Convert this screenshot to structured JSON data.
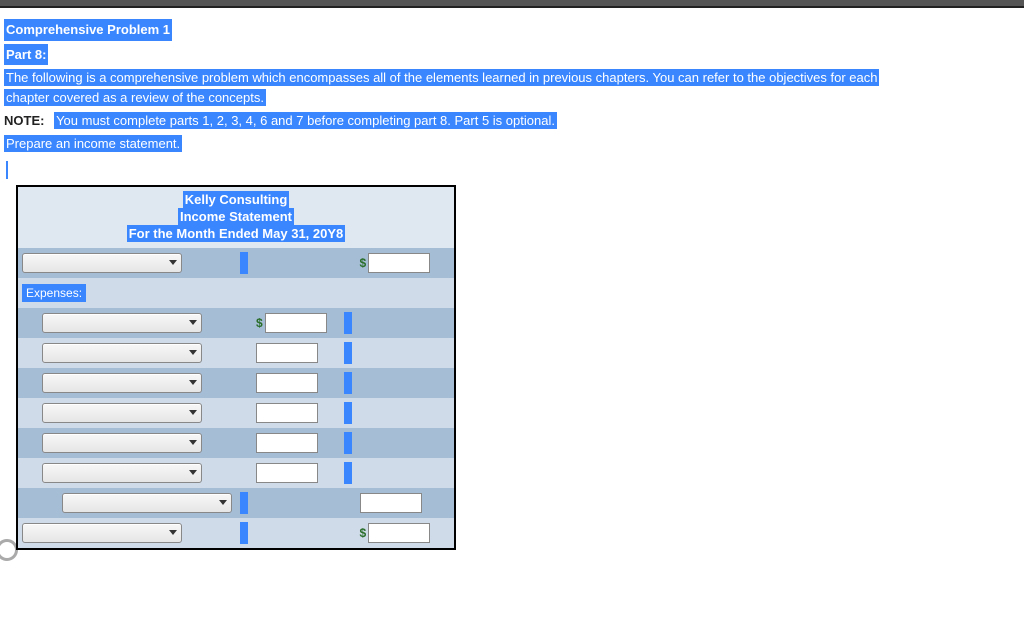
{
  "header": {
    "title": "Comprehensive Problem 1",
    "part": "Part 8:"
  },
  "intro": {
    "line1": "The following is a comprehensive problem which encompasses all of the elements learned in previous chapters. You can refer to the objectives for each",
    "line2": "chapter covered as a review of the concepts."
  },
  "note": {
    "label": "NOTE:",
    "text": "You must complete parts 1, 2, 3, 4, 6 and 7 before completing part 8. Part 5 is optional."
  },
  "instruction": "Prepare an income statement.",
  "statement": {
    "company": "Kelly Consulting",
    "title": "Income Statement",
    "period": "For the Month Ended May 31, 20Y8",
    "expenses_label": "Expenses:",
    "dollar_sign": "$",
    "rows": [
      {
        "band": "dark",
        "select": true,
        "select_indent": 0,
        "blue1": true,
        "input1": false,
        "dollar1": false,
        "blue2": false,
        "input2": true,
        "dollar2": true
      },
      {
        "band": "light",
        "expenses": true
      },
      {
        "band": "dark",
        "select": true,
        "select_indent": 1,
        "blue1": false,
        "input1": true,
        "dollar1": true,
        "blue2": true,
        "input2": false,
        "dollar2": false
      },
      {
        "band": "light",
        "select": true,
        "select_indent": 1,
        "blue1": false,
        "input1": true,
        "dollar1": false,
        "blue2": true,
        "input2": false,
        "dollar2": false
      },
      {
        "band": "dark",
        "select": true,
        "select_indent": 1,
        "blue1": false,
        "input1": true,
        "dollar1": false,
        "blue2": true,
        "input2": false,
        "dollar2": false
      },
      {
        "band": "light",
        "select": true,
        "select_indent": 1,
        "blue1": false,
        "input1": true,
        "dollar1": false,
        "blue2": true,
        "input2": false,
        "dollar2": false
      },
      {
        "band": "dark",
        "select": true,
        "select_indent": 1,
        "blue1": false,
        "input1": true,
        "dollar1": false,
        "blue2": true,
        "input2": false,
        "dollar2": false
      },
      {
        "band": "light",
        "select": true,
        "select_indent": 1,
        "blue1": false,
        "input1": true,
        "dollar1": false,
        "blue2": true,
        "input2": false,
        "dollar2": false
      },
      {
        "band": "dark",
        "select": true,
        "select_indent": 2,
        "blue1": true,
        "input1": false,
        "dollar1": false,
        "blue2": false,
        "input2": true,
        "dollar2": false
      },
      {
        "band": "light",
        "select": true,
        "select_indent": 0,
        "blue1": true,
        "input1": false,
        "dollar1": false,
        "blue2": false,
        "input2": true,
        "dollar2": true
      }
    ]
  },
  "style": {
    "highlight_bg": "#3a86ff",
    "highlight_fg": "#ffffff",
    "band_dark": "#a6bdd6",
    "band_light": "#cfdbe8",
    "table_border": "#000000",
    "dollar_color": "#2a6e2a"
  }
}
